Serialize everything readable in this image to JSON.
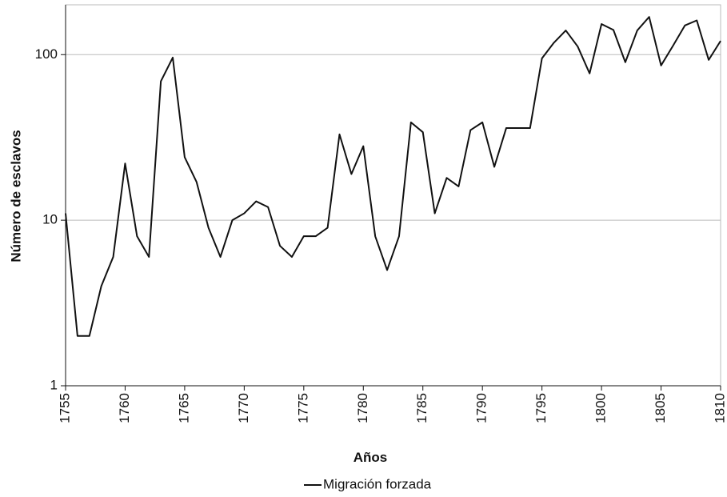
{
  "chart_data": {
    "type": "line",
    "x_label": "Años",
    "y_label": "Número de esclavos",
    "x": [
      1755,
      1756,
      1757,
      1758,
      1759,
      1760,
      1761,
      1762,
      1763,
      1764,
      1765,
      1766,
      1767,
      1768,
      1769,
      1770,
      1771,
      1772,
      1773,
      1774,
      1775,
      1776,
      1777,
      1778,
      1779,
      1780,
      1781,
      1782,
      1783,
      1784,
      1785,
      1786,
      1787,
      1788,
      1789,
      1790,
      1791,
      1792,
      1793,
      1794,
      1795,
      1796,
      1797,
      1798,
      1799,
      1800,
      1801,
      1802,
      1803,
      1804,
      1805,
      1806,
      1807,
      1808,
      1809,
      1810
    ],
    "series": [
      {
        "name": "Migración forzada",
        "color": "#111111",
        "values": [
          11,
          2,
          2,
          4,
          6,
          22,
          8,
          6,
          69,
          96,
          24,
          17,
          9,
          6,
          10,
          11,
          13,
          12,
          7,
          6,
          8,
          8,
          9,
          33,
          19,
          28,
          8,
          5,
          8,
          39,
          34,
          11,
          18,
          16,
          35,
          39,
          21,
          36,
          36,
          36,
          95,
          118,
          140,
          112,
          77,
          153,
          141,
          90,
          140,
          169,
          86,
          113,
          150,
          161,
          93,
          121
        ]
      }
    ],
    "xlim": [
      1755,
      1810
    ],
    "xticks": [
      1755,
      1760,
      1765,
      1770,
      1775,
      1780,
      1785,
      1790,
      1795,
      1800,
      1805,
      1810
    ],
    "ylim": [
      1,
      200
    ],
    "yticks": [
      1,
      10,
      100
    ],
    "y_log": true,
    "grid": true
  }
}
